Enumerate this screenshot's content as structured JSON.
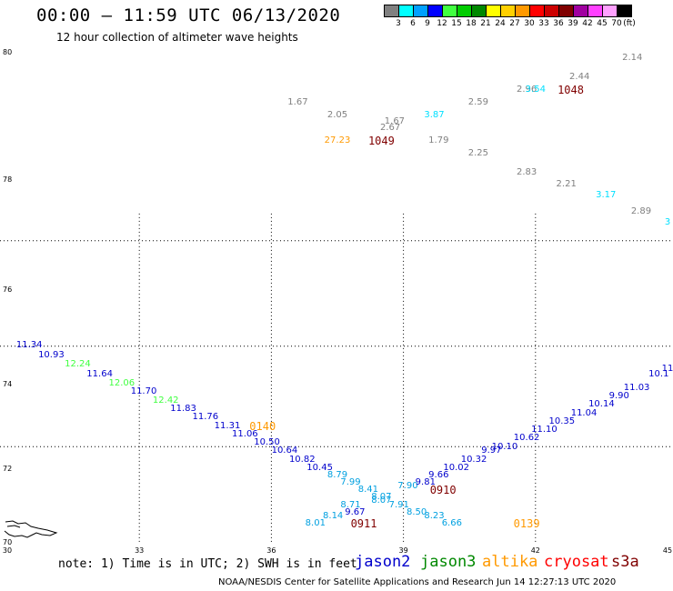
{
  "header": {
    "title": "00:00 – 11:59 UTC 06/13/2020",
    "subtitle": "12 hour collection of altimeter wave heights"
  },
  "color_scale": {
    "unit_label": "(ft)",
    "steps": [
      {
        "label": "3",
        "color": "#808080"
      },
      {
        "label": "6",
        "color": "#00ffff"
      },
      {
        "label": "9",
        "color": "#00a0ff"
      },
      {
        "label": "12",
        "color": "#0000ff"
      },
      {
        "label": "15",
        "color": "#40ff40"
      },
      {
        "label": "18",
        "color": "#00cc00"
      },
      {
        "label": "21",
        "color": "#008800"
      },
      {
        "label": "24",
        "color": "#ffff00"
      },
      {
        "label": "27",
        "color": "#ffd000"
      },
      {
        "label": "30",
        "color": "#ff9900"
      },
      {
        "label": "33",
        "color": "#ff0000"
      },
      {
        "label": "36",
        "color": "#cc0000"
      },
      {
        "label": "39",
        "color": "#800000"
      },
      {
        "label": "42",
        "color": "#a000a0"
      },
      {
        "label": "45",
        "color": "#ff40ff"
      },
      {
        "label": "70",
        "color": "#ffa0ff"
      },
      {
        "label": "",
        "color": "#000000"
      }
    ]
  },
  "axes": {
    "lon_ticks": [
      "30",
      "33",
      "36",
      "39",
      "42",
      "45"
    ],
    "lat_ticks": [
      "70",
      "72",
      "74",
      "76",
      "78",
      "80"
    ]
  },
  "observations": [
    {
      "value": "1.67",
      "lon": 36.6,
      "lat": 79.2,
      "color": "#808080"
    },
    {
      "value": "2.05",
      "lon": 37.5,
      "lat": 79.0,
      "color": "#808080"
    },
    {
      "value": "1.67",
      "lon": 38.8,
      "lat": 78.9,
      "color": "#808080"
    },
    {
      "value": "2.67",
      "lon": 38.7,
      "lat": 78.8,
      "color": "#808080"
    },
    {
      "value": "27.23",
      "lon": 37.5,
      "lat": 78.6,
      "color": "#ff9900"
    },
    {
      "value": "1.79",
      "lon": 39.8,
      "lat": 78.6,
      "color": "#808080"
    },
    {
      "value": "3.87",
      "lon": 39.7,
      "lat": 79.0,
      "color": "#00e0ff"
    },
    {
      "value": "2.59",
      "lon": 40.7,
      "lat": 79.2,
      "color": "#808080"
    },
    {
      "value": "2.25",
      "lon": 40.7,
      "lat": 78.4,
      "color": "#808080"
    },
    {
      "value": "2.96",
      "lon": 41.8,
      "lat": 79.4,
      "color": "#808080"
    },
    {
      "value": "3.54",
      "lon": 42.0,
      "lat": 79.4,
      "color": "#00e0ff"
    },
    {
      "value": "2.44",
      "lon": 43.0,
      "lat": 79.6,
      "color": "#808080"
    },
    {
      "value": "2.14",
      "lon": 44.2,
      "lat": 79.9,
      "color": "#808080"
    },
    {
      "value": "2.83",
      "lon": 41.8,
      "lat": 78.1,
      "color": "#808080"
    },
    {
      "value": "2.21",
      "lon": 42.7,
      "lat": 77.9,
      "color": "#808080"
    },
    {
      "value": "3.17",
      "lon": 43.6,
      "lat": 77.7,
      "color": "#00e0ff"
    },
    {
      "value": "2.89",
      "lon": 44.4,
      "lat": 77.4,
      "color": "#808080"
    },
    {
      "value": "3",
      "lon": 45.0,
      "lat": 77.2,
      "color": "#00e0ff"
    },
    {
      "value": "11.34",
      "lon": 30.5,
      "lat": 74.8,
      "color": "#0000cc"
    },
    {
      "value": "10.93",
      "lon": 31.0,
      "lat": 74.6,
      "color": "#0000cc"
    },
    {
      "value": "12.24",
      "lon": 31.6,
      "lat": 74.4,
      "color": "#40ff40"
    },
    {
      "value": "11.64",
      "lon": 32.1,
      "lat": 74.2,
      "color": "#0000cc"
    },
    {
      "value": "12.06",
      "lon": 32.6,
      "lat": 74.0,
      "color": "#40ff40"
    },
    {
      "value": "11.70",
      "lon": 33.1,
      "lat": 73.8,
      "color": "#0000cc"
    },
    {
      "value": "12.42",
      "lon": 33.6,
      "lat": 73.6,
      "color": "#40ff40"
    },
    {
      "value": "11.83",
      "lon": 34.0,
      "lat": 73.4,
      "color": "#0000cc"
    },
    {
      "value": "11.76",
      "lon": 34.5,
      "lat": 73.2,
      "color": "#0000cc"
    },
    {
      "value": "11.31",
      "lon": 35.0,
      "lat": 73.0,
      "color": "#0000cc"
    },
    {
      "value": "11.06",
      "lon": 35.4,
      "lat": 72.8,
      "color": "#0000cc"
    },
    {
      "value": "10.50",
      "lon": 35.9,
      "lat": 72.6,
      "color": "#0000cc"
    },
    {
      "value": "10.64",
      "lon": 36.3,
      "lat": 72.4,
      "color": "#0000cc"
    },
    {
      "value": "10.82",
      "lon": 36.7,
      "lat": 72.2,
      "color": "#0000cc"
    },
    {
      "value": "10.45",
      "lon": 37.1,
      "lat": 72.0,
      "color": "#0000cc"
    },
    {
      "value": "8.79",
      "lon": 37.5,
      "lat": 71.8,
      "color": "#00a0e0"
    },
    {
      "value": "7.99",
      "lon": 37.8,
      "lat": 71.6,
      "color": "#00a0e0"
    },
    {
      "value": "8.41",
      "lon": 38.2,
      "lat": 71.4,
      "color": "#00a0e0"
    },
    {
      "value": "8.07",
      "lon": 38.5,
      "lat": 71.2,
      "color": "#00a0e0"
    },
    {
      "value": "8.07",
      "lon": 38.5,
      "lat": 71.1,
      "color": "#00a0e0"
    },
    {
      "value": "8.71",
      "lon": 37.8,
      "lat": 71.0,
      "color": "#00a0e0"
    },
    {
      "value": "9.67",
      "lon": 37.9,
      "lat": 70.8,
      "color": "#0000cc"
    },
    {
      "value": "8.14",
      "lon": 37.4,
      "lat": 70.7,
      "color": "#00a0e0"
    },
    {
      "value": "8.01",
      "lon": 37.0,
      "lat": 70.5,
      "color": "#00a0e0"
    },
    {
      "value": "7.90",
      "lon": 39.1,
      "lat": 71.5,
      "color": "#00a0e0"
    },
    {
      "value": "7.91",
      "lon": 38.9,
      "lat": 71.0,
      "color": "#00a0e0"
    },
    {
      "value": "8.50",
      "lon": 39.3,
      "lat": 70.8,
      "color": "#00a0e0"
    },
    {
      "value": "8.23",
      "lon": 39.7,
      "lat": 70.7,
      "color": "#00a0e0"
    },
    {
      "value": "6.66",
      "lon": 40.1,
      "lat": 70.5,
      "color": "#00a0e0"
    },
    {
      "value": "9.81",
      "lon": 39.5,
      "lat": 71.6,
      "color": "#0000cc"
    },
    {
      "value": "9.66",
      "lon": 39.8,
      "lat": 71.8,
      "color": "#0000cc"
    },
    {
      "value": "10.02",
      "lon": 40.2,
      "lat": 72.0,
      "color": "#0000cc"
    },
    {
      "value": "10.32",
      "lon": 40.6,
      "lat": 72.2,
      "color": "#0000cc"
    },
    {
      "value": "9.97",
      "lon": 41.0,
      "lat": 72.4,
      "color": "#0000cc"
    },
    {
      "value": "10.10",
      "lon": 41.3,
      "lat": 72.5,
      "color": "#0000cc"
    },
    {
      "value": "10.62",
      "lon": 41.8,
      "lat": 72.7,
      "color": "#0000cc"
    },
    {
      "value": "11.10",
      "lon": 42.2,
      "lat": 72.9,
      "color": "#0000cc"
    },
    {
      "value": "10.35",
      "lon": 42.6,
      "lat": 73.1,
      "color": "#0000cc"
    },
    {
      "value": "11.04",
      "lon": 43.1,
      "lat": 73.3,
      "color": "#0000cc"
    },
    {
      "value": "10.14",
      "lon": 43.5,
      "lat": 73.5,
      "color": "#0000cc"
    },
    {
      "value": "9.90",
      "lon": 43.9,
      "lat": 73.7,
      "color": "#0000cc"
    },
    {
      "value": "11.03",
      "lon": 44.3,
      "lat": 73.9,
      "color": "#0000cc"
    },
    {
      "value": "10.1",
      "lon": 44.8,
      "lat": 74.2,
      "color": "#0000cc"
    },
    {
      "value": "11",
      "lon": 45.0,
      "lat": 74.3,
      "color": "#0000cc"
    }
  ],
  "time_codes": [
    {
      "value": "1049",
      "lon": 38.5,
      "lat": 78.6,
      "color": "#800000"
    },
    {
      "value": "1048",
      "lon": 42.8,
      "lat": 79.4,
      "color": "#800000"
    },
    {
      "value": "0140",
      "lon": 35.8,
      "lat": 73.0,
      "color": "#ff9900"
    },
    {
      "value": "0910",
      "lon": 39.9,
      "lat": 71.4,
      "color": "#800000"
    },
    {
      "value": "0911",
      "lon": 38.1,
      "lat": 70.5,
      "color": "#800000"
    },
    {
      "value": "0139",
      "lon": 41.8,
      "lat": 70.5,
      "color": "#ff9900"
    }
  ],
  "footer": {
    "note": "note: 1) Time is in UTC; 2) SWH is in feet",
    "satellites": [
      {
        "name": "jason2",
        "color": "#0000cc"
      },
      {
        "name": "jason3",
        "color": "#008800"
      },
      {
        "name": "altika",
        "color": "#ff9900"
      },
      {
        "name": "cryosat",
        "color": "#ff0000"
      },
      {
        "name": "s3a",
        "color": "#800000"
      }
    ],
    "credit": "NOAA/NESDIS Center for Satellite Applications and Research   Jun 14 12:27:13 UTC 2020"
  }
}
